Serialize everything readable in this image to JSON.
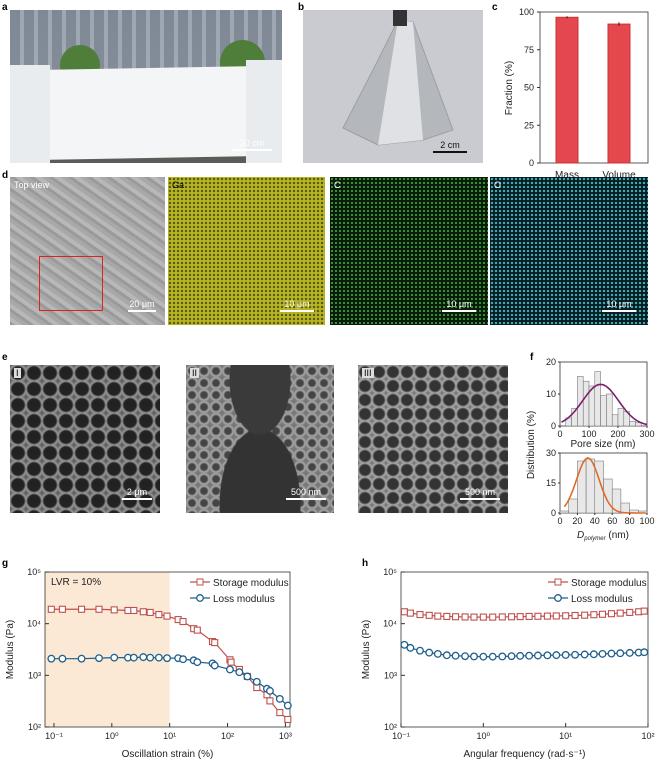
{
  "panels": {
    "a": {
      "label": "a",
      "scale": "20 cm"
    },
    "b": {
      "label": "b",
      "scale": "2 cm"
    },
    "c": {
      "label": "c"
    },
    "d": {
      "label": "d",
      "images": [
        {
          "tag": "Top view",
          "scale": "20 μm"
        },
        {
          "tag": "Ga",
          "scale": "10 μm"
        },
        {
          "tag": "C",
          "scale": "10 μm"
        },
        {
          "tag": "O",
          "scale": "10 μm"
        }
      ]
    },
    "e": {
      "label": "e",
      "images": [
        {
          "tag": "I",
          "scale": "2 μm"
        },
        {
          "tag": "II",
          "scale": "500 nm"
        },
        {
          "tag": "III",
          "scale": "500 nm"
        }
      ]
    },
    "f": {
      "label": "f"
    },
    "g": {
      "label": "g"
    },
    "h": {
      "label": "h"
    }
  },
  "colors": {
    "bar": "#e5474f",
    "storage": "#c0504d",
    "loss": "#1f5f8b",
    "lvr_shade": "#fbe9d6",
    "fit_pore": "#7b1f6f",
    "fit_dpoly": "#e06a2a",
    "hist": "#e8e8e8"
  },
  "chart_data": [
    {
      "type": "bar",
      "panel": "c",
      "categories": [
        "Mass",
        "Volume"
      ],
      "values": [
        96.5,
        92
      ],
      "errors": [
        0.7,
        1.2
      ],
      "ylabel": "Fraction (%)",
      "ylim": [
        0,
        100
      ],
      "yticks": [
        "0",
        "25",
        "50",
        "75",
        "100"
      ]
    },
    {
      "type": "bar",
      "panel": "f-top",
      "histogram": true,
      "bin_edges": [
        20,
        40,
        60,
        80,
        100,
        120,
        140,
        160,
        180,
        200,
        220,
        240,
        260,
        280
      ],
      "values": [
        2.5,
        5.5,
        15.5,
        14,
        12.5,
        17,
        9.5,
        10,
        3.5,
        5.5,
        4.5,
        1.5,
        1
      ],
      "fit": {
        "type": "gaussian",
        "center": 140,
        "peak": 13,
        "sigma": 62
      },
      "xlabel": "Pore size (nm)",
      "xlim": [
        0,
        300
      ],
      "ylim": [
        0,
        20
      ],
      "xticks": [
        "0",
        "100",
        "200",
        "300"
      ],
      "yticks": [
        "0",
        "10",
        "20"
      ]
    },
    {
      "type": "bar",
      "panel": "f-bottom",
      "histogram": true,
      "bin_edges": [
        0,
        10,
        20,
        30,
        40,
        50,
        60,
        70,
        80,
        90,
        100
      ],
      "values": [
        1,
        7,
        26,
        27,
        26,
        17,
        12,
        5,
        1.5,
        1
      ],
      "fit": {
        "type": "gaussian",
        "center": 32,
        "peak": 27.5,
        "sigma": 13
      },
      "xlabel_main": "D",
      "xlabel_sub": "polymer",
      "xlabel_unit": " (nm)",
      "ylabel": "Distribution (%)",
      "xlim": [
        0,
        100
      ],
      "ylim": [
        0,
        30
      ],
      "xticks": [
        "0",
        "20",
        "40",
        "60",
        "80",
        "100"
      ],
      "yticks": [
        "0",
        "15",
        "30"
      ]
    },
    {
      "type": "line",
      "panel": "g",
      "xscale": "log",
      "yscale": "log",
      "xlim": [
        0.07,
        1200
      ],
      "ylim": [
        100,
        100000
      ],
      "xlabel": "Oscillation strain (%)",
      "ylabel": "Modulus (Pa)",
      "annotation": "LVR = 10%",
      "lvr_shade": [
        0.07,
        10
      ],
      "legend": "top-right",
      "xticks": [
        "10⁻¹",
        "10⁰",
        "10¹",
        "10²",
        "10³"
      ],
      "yticks": [
        "10²",
        "10³",
        "10⁴",
        "10⁵"
      ],
      "series": [
        {
          "name": "Storage modulus",
          "marker": "square",
          "x": [
            0.09,
            0.14,
            0.3,
            0.6,
            1.1,
            1.9,
            2.4,
            3.5,
            4.6,
            6.5,
            9,
            14,
            17,
            26,
            30,
            55,
            60,
            110,
            115,
            160,
            220,
            320,
            480,
            540,
            800,
            1100
          ],
          "y": [
            19000,
            19000,
            19000,
            19000,
            18500,
            18000,
            18000,
            17000,
            16500,
            15000,
            14000,
            12000,
            11000,
            8000,
            7500,
            4500,
            4300,
            2000,
            1800,
            1300,
            950,
            580,
            420,
            320,
            190,
            140
          ]
        },
        {
          "name": "Loss modulus",
          "marker": "circle",
          "x": [
            0.09,
            0.14,
            0.3,
            0.6,
            1.1,
            1.9,
            2.4,
            3.5,
            4.6,
            6.5,
            9,
            14,
            17,
            26,
            30,
            55,
            60,
            110,
            160,
            220,
            320,
            480,
            540,
            800,
            1100
          ],
          "y": [
            2100,
            2100,
            2100,
            2150,
            2200,
            2200,
            2200,
            2250,
            2200,
            2200,
            2150,
            2150,
            2050,
            1950,
            1800,
            1700,
            1550,
            1300,
            1150,
            950,
            750,
            550,
            500,
            350,
            260
          ]
        }
      ]
    },
    {
      "type": "line",
      "panel": "h",
      "xscale": "log",
      "yscale": "log",
      "xlim": [
        0.1,
        100
      ],
      "ylim": [
        100,
        100000
      ],
      "xlabel": "Angular frequency (rad·s⁻¹)",
      "ylabel": "Modulus (Pa)",
      "legend": "top-right",
      "xticks": [
        "10⁻¹",
        "10⁰",
        "10¹",
        "10²"
      ],
      "yticks": [
        "10²",
        "10³",
        "10⁴",
        "10⁵"
      ],
      "series": [
        {
          "name": "Storage modulus",
          "marker": "square",
          "x": [
            0.11,
            0.13,
            0.17,
            0.22,
            0.28,
            0.36,
            0.46,
            0.6,
            0.77,
            1,
            1.3,
            1.7,
            2.2,
            2.8,
            3.6,
            4.6,
            6,
            7.7,
            10,
            13,
            17,
            22,
            28,
            36,
            46,
            60,
            77,
            90
          ],
          "y": [
            17000,
            16000,
            15000,
            14500,
            14000,
            13800,
            13600,
            13500,
            13400,
            13400,
            13400,
            13500,
            13600,
            13700,
            13800,
            13900,
            14000,
            14100,
            14200,
            14400,
            14600,
            14900,
            15200,
            15600,
            16000,
            16500,
            17000,
            17500
          ]
        },
        {
          "name": "Loss modulus",
          "marker": "circle",
          "x": [
            0.11,
            0.13,
            0.17,
            0.22,
            0.28,
            0.36,
            0.46,
            0.6,
            0.77,
            1,
            1.3,
            1.7,
            2.2,
            2.8,
            3.6,
            4.6,
            6,
            7.7,
            10,
            13,
            17,
            22,
            28,
            36,
            46,
            60,
            77,
            90
          ],
          "y": [
            3900,
            3400,
            3000,
            2750,
            2600,
            2450,
            2400,
            2350,
            2320,
            2300,
            2300,
            2320,
            2350,
            2380,
            2400,
            2420,
            2440,
            2460,
            2480,
            2500,
            2530,
            2560,
            2600,
            2640,
            2680,
            2720,
            2760,
            2800
          ]
        }
      ]
    }
  ]
}
